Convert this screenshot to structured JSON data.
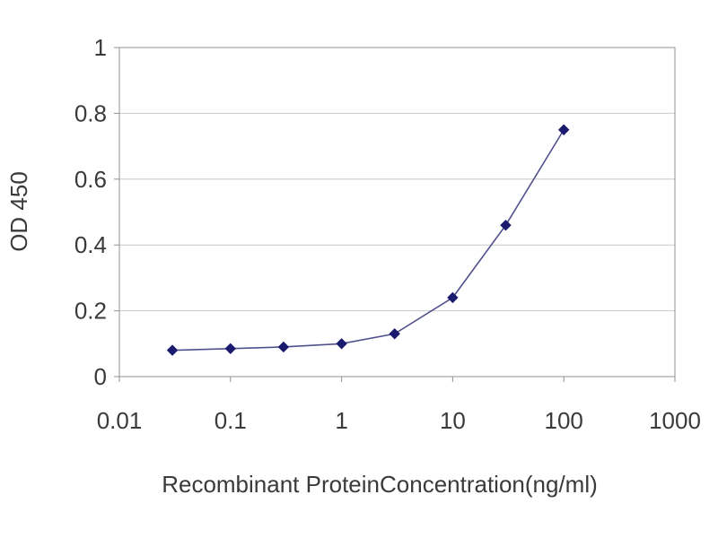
{
  "chart_data": {
    "type": "line",
    "title": "",
    "xlabel": "Recombinant ProteinConcentration(ng/ml)",
    "ylabel": "OD 450",
    "x_scale": "log10",
    "x": [
      0.03,
      0.1,
      0.3,
      1,
      3,
      10,
      30,
      100
    ],
    "y": [
      0.08,
      0.085,
      0.09,
      0.1,
      0.13,
      0.24,
      0.46,
      0.75
    ],
    "xlim": [
      0.01,
      1000
    ],
    "ylim": [
      0,
      1
    ],
    "x_tick_labels": [
      "0.01",
      "0.1",
      "1",
      "10",
      "100",
      "1000"
    ],
    "x_tick_values": [
      0.01,
      0.1,
      1,
      10,
      100,
      1000
    ],
    "y_tick_labels": [
      "0",
      "0.2",
      "0.4",
      "0.6",
      "0.8",
      "1"
    ],
    "y_tick_values": [
      0,
      0.2,
      0.4,
      0.6,
      0.8,
      1
    ],
    "grid": "horizontal",
    "legend": "none",
    "marker": "diamond",
    "colors": {
      "line": "#50508c",
      "marker": "#1a1a6e",
      "grid": "#c8c8c8",
      "axis": "#919191",
      "text": "#3a3a3a",
      "background": "#ffffff"
    }
  }
}
